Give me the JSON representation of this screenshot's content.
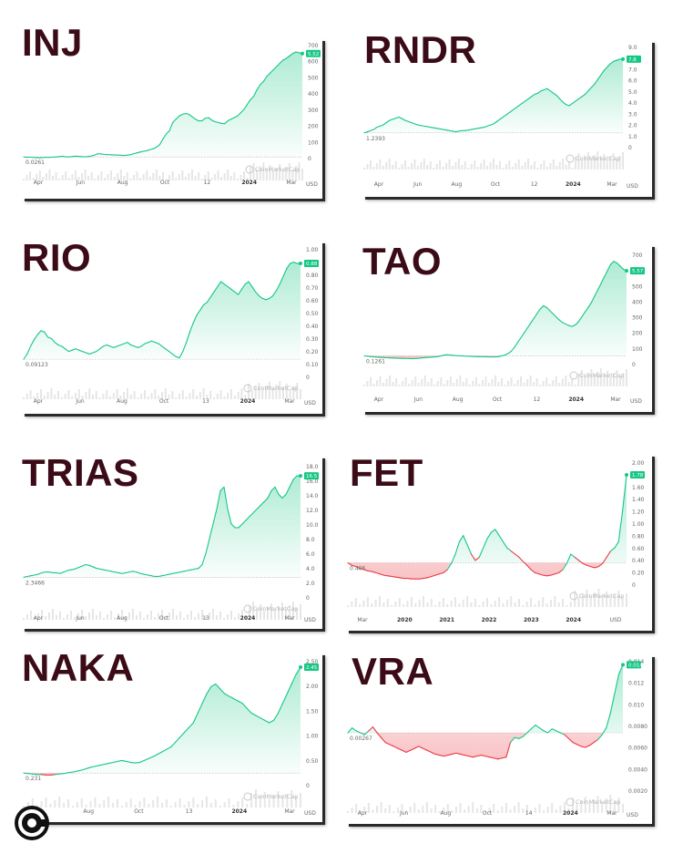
{
  "watermark": "CoinMarketCap",
  "currency": "USD",
  "colors": {
    "up": "#16c784",
    "down": "#ea3943",
    "title": "#3b0b17"
  },
  "logo_icon": "coin-c-icon",
  "chart_data": [
    {
      "id": "inj",
      "type": "area",
      "title": "INJ",
      "start_label": "0.0261",
      "current": "5.52",
      "x_labels": [
        "Apr",
        "Jun",
        "Aug",
        "Oct",
        "12",
        "2024",
        "Mar"
      ],
      "y_ticks": [
        "700",
        "600",
        "500",
        "400",
        "300",
        "200",
        "100",
        "0"
      ],
      "ymin": 0,
      "ymax": 700,
      "values": [
        10,
        8,
        9,
        7,
        6,
        5,
        7,
        8,
        7,
        9,
        10,
        12,
        14,
        11,
        10,
        12,
        15,
        13,
        12,
        11,
        13,
        16,
        22,
        30,
        28,
        25,
        24,
        23,
        22,
        22,
        20,
        19,
        21,
        24,
        30,
        35,
        40,
        45,
        48,
        55,
        60,
        70,
        85,
        120,
        150,
        170,
        220,
        240,
        260,
        270,
        275,
        270,
        255,
        240,
        230,
        230,
        245,
        250,
        235,
        225,
        220,
        215,
        212,
        230,
        240,
        250,
        260,
        280,
        300,
        330,
        360,
        380,
        420,
        450,
        470,
        500,
        520,
        540,
        560,
        580,
        600,
        610,
        625,
        640,
        650,
        645,
        640
      ],
      "red": []
    },
    {
      "id": "rndr",
      "type": "area",
      "title": "RNDR",
      "start_label": "1.2393",
      "current": "7.8",
      "x_labels": [
        "Apr",
        "Jun",
        "Aug",
        "Oct",
        "12",
        "2024",
        "Mar"
      ],
      "y_ticks": [
        "9.0",
        "8.0",
        "7.0",
        "6.0",
        "5.0",
        "4.0",
        "3.0",
        "2.0",
        "1.0",
        "0"
      ],
      "ymin": 0,
      "ymax": 9,
      "values": [
        1.3,
        1.4,
        1.5,
        1.6,
        1.8,
        1.9,
        2.0,
        2.2,
        2.4,
        2.5,
        2.6,
        2.7,
        2.55,
        2.4,
        2.3,
        2.2,
        2.1,
        2.0,
        1.95,
        1.9,
        1.85,
        1.8,
        1.75,
        1.7,
        1.65,
        1.6,
        1.55,
        1.5,
        1.45,
        1.4,
        1.45,
        1.5,
        1.5,
        1.55,
        1.6,
        1.65,
        1.7,
        1.75,
        1.8,
        1.9,
        2.0,
        2.1,
        2.3,
        2.5,
        2.7,
        2.9,
        3.1,
        3.3,
        3.5,
        3.7,
        3.9,
        4.1,
        4.3,
        4.5,
        4.7,
        4.8,
        5.0,
        5.1,
        5.2,
        5.0,
        4.8,
        4.6,
        4.3,
        4.0,
        3.8,
        3.7,
        3.9,
        4.1,
        4.3,
        4.5,
        4.7,
        5.0,
        5.3,
        5.6,
        6.0,
        6.4,
        6.8,
        7.1,
        7.4,
        7.6,
        7.7,
        7.8,
        7.8
      ],
      "red": []
    },
    {
      "id": "rio",
      "type": "area",
      "title": "RIO",
      "start_label": "0.09123",
      "current": "0.88",
      "x_labels": [
        "Apr",
        "Jun",
        "Aug",
        "Oct",
        "13",
        "2024",
        "Mar"
      ],
      "y_ticks": [
        "1.00",
        "0.90",
        "0.80",
        "0.70",
        "0.60",
        "0.50",
        "0.40",
        "0.30",
        "0.20",
        "0.10",
        "0"
      ],
      "ymin": 0,
      "ymax": 1.0,
      "values": [
        0.14,
        0.18,
        0.24,
        0.29,
        0.33,
        0.36,
        0.35,
        0.31,
        0.3,
        0.27,
        0.25,
        0.24,
        0.22,
        0.2,
        0.21,
        0.22,
        0.21,
        0.2,
        0.19,
        0.18,
        0.19,
        0.2,
        0.22,
        0.24,
        0.25,
        0.24,
        0.23,
        0.24,
        0.25,
        0.26,
        0.27,
        0.25,
        0.24,
        0.23,
        0.24,
        0.26,
        0.27,
        0.28,
        0.27,
        0.26,
        0.24,
        0.22,
        0.2,
        0.18,
        0.16,
        0.15,
        0.2,
        0.27,
        0.35,
        0.42,
        0.48,
        0.52,
        0.56,
        0.58,
        0.62,
        0.66,
        0.7,
        0.74,
        0.72,
        0.7,
        0.68,
        0.66,
        0.64,
        0.68,
        0.72,
        0.74,
        0.7,
        0.66,
        0.63,
        0.61,
        0.6,
        0.61,
        0.63,
        0.67,
        0.72,
        0.78,
        0.84,
        0.88,
        0.89,
        0.88,
        0.88
      ],
      "red": []
    },
    {
      "id": "tao",
      "type": "area",
      "title": "TAO",
      "start_label": "0.1261",
      "current": "5.57",
      "x_labels": [
        "Apr",
        "Jun",
        "Aug",
        "Oct",
        "12",
        "2024",
        "Mar"
      ],
      "y_ticks": [
        "700",
        "600",
        "500",
        "400",
        "300",
        "200",
        "100",
        "0"
      ],
      "ymin": 0,
      "ymax": 700,
      "values": [
        55,
        53,
        50,
        48,
        46,
        45,
        44,
        43,
        42,
        41,
        40,
        40,
        39,
        38,
        38,
        37,
        38,
        40,
        42,
        44,
        45,
        46,
        48,
        50,
        55,
        60,
        62,
        60,
        58,
        56,
        55,
        54,
        53,
        52,
        51,
        50,
        50,
        50,
        49,
        48,
        48,
        48,
        50,
        55,
        60,
        70,
        85,
        110,
        140,
        170,
        200,
        230,
        260,
        290,
        320,
        350,
        370,
        360,
        340,
        320,
        300,
        280,
        265,
        255,
        245,
        240,
        250,
        270,
        300,
        330,
        360,
        390,
        430,
        470,
        510,
        550,
        590,
        630,
        650,
        640,
        620,
        600,
        590
      ],
      "red": []
    },
    {
      "id": "trias",
      "type": "area",
      "title": "TRIAS",
      "start_label": "2.3466",
      "current": "16.5",
      "x_labels": [
        "Apr",
        "Jun",
        "Aug",
        "Oct",
        "13",
        "2024",
        "Mar"
      ],
      "y_ticks": [
        "18.0",
        "16.0",
        "14.0",
        "12.0",
        "10.0",
        "8.0",
        "6.0",
        "4.0",
        "2.0",
        "0"
      ],
      "ymin": 0,
      "ymax": 18,
      "values": [
        2.8,
        2.9,
        3.0,
        3.1,
        3.2,
        3.4,
        3.5,
        3.5,
        3.4,
        3.4,
        3.3,
        3.5,
        3.7,
        3.8,
        3.9,
        4.1,
        4.3,
        4.5,
        4.4,
        4.2,
        4.0,
        3.9,
        3.8,
        3.7,
        3.6,
        3.5,
        3.4,
        3.3,
        3.4,
        3.5,
        3.6,
        3.5,
        3.3,
        3.2,
        3.1,
        3.0,
        2.9,
        2.9,
        3.0,
        3.1,
        3.2,
        3.3,
        3.4,
        3.5,
        3.6,
        3.7,
        3.8,
        3.9,
        4.0,
        4.5,
        6.0,
        8.0,
        10.0,
        12.0,
        14.5,
        15.0,
        12.0,
        10.0,
        9.5,
        9.5,
        10.0,
        10.5,
        11.0,
        11.5,
        12.0,
        12.5,
        13.0,
        13.5,
        14.5,
        15.0,
        14.0,
        13.5,
        14.0,
        15.0,
        16.0,
        16.5,
        16.5
      ],
      "red": []
    },
    {
      "id": "fet",
      "type": "area",
      "title": "FET",
      "start_label": "0.406",
      "current": "1.78",
      "x_labels": [
        "Mar",
        "2020",
        "2021",
        "2022",
        "2023",
        "2024",
        "USD"
      ],
      "y_ticks": [
        "2.00",
        "1.80",
        "1.60",
        "1.40",
        "1.20",
        "1.00",
        "0.80",
        "0.60",
        "0.40",
        "0.20",
        "0"
      ],
      "ymin": 0,
      "ymax": 2.0,
      "values": [
        0.36,
        0.32,
        0.3,
        0.27,
        0.25,
        0.23,
        0.22,
        0.2,
        0.18,
        0.16,
        0.15,
        0.14,
        0.13,
        0.12,
        0.11,
        0.11,
        0.1,
        0.1,
        0.1,
        0.11,
        0.12,
        0.14,
        0.16,
        0.18,
        0.2,
        0.25,
        0.35,
        0.5,
        0.7,
        0.8,
        0.65,
        0.5,
        0.4,
        0.45,
        0.6,
        0.75,
        0.85,
        0.9,
        0.8,
        0.7,
        0.6,
        0.55,
        0.5,
        0.45,
        0.38,
        0.32,
        0.25,
        0.2,
        0.18,
        0.16,
        0.15,
        0.16,
        0.18,
        0.2,
        0.25,
        0.35,
        0.5,
        0.45,
        0.4,
        0.35,
        0.32,
        0.3,
        0.28,
        0.3,
        0.35,
        0.45,
        0.55,
        0.6,
        0.7,
        1.2,
        1.78
      ],
      "red": [
        [
          0,
          25
        ],
        [
          31,
          33
        ],
        [
          41,
          54
        ],
        [
          57,
          66
        ]
      ]
    },
    {
      "id": "naka",
      "type": "area",
      "title": "NAKA",
      "start_label": "0.231",
      "current": "2.45",
      "x_labels": [
        "Jun",
        "Aug",
        "Oct",
        "13",
        "2024",
        "Mar"
      ],
      "y_ticks": [
        "2.50",
        "2.00",
        "1.50",
        "1.00",
        "0.50",
        "0"
      ],
      "ymin": 0,
      "ymax": 2.6,
      "values": [
        0.26,
        0.25,
        0.24,
        0.23,
        0.23,
        0.22,
        0.22,
        0.23,
        0.24,
        0.25,
        0.27,
        0.28,
        0.3,
        0.32,
        0.35,
        0.38,
        0.4,
        0.42,
        0.44,
        0.46,
        0.48,
        0.5,
        0.52,
        0.5,
        0.48,
        0.47,
        0.48,
        0.52,
        0.56,
        0.6,
        0.65,
        0.7,
        0.75,
        0.8,
        0.9,
        1.0,
        1.1,
        1.2,
        1.3,
        1.5,
        1.7,
        1.9,
        2.05,
        2.1,
        2.0,
        1.9,
        1.85,
        1.8,
        1.75,
        1.7,
        1.6,
        1.5,
        1.45,
        1.4,
        1.35,
        1.3,
        1.35,
        1.5,
        1.7,
        1.9,
        2.1,
        2.3,
        2.45
      ],
      "red": [
        [
          4,
          7
        ]
      ]
    },
    {
      "id": "vra",
      "type": "area",
      "title": "VRA",
      "start_label": "0.00267",
      "current": "0.014",
      "x_labels": [
        "Apr",
        "Jun",
        "Aug",
        "Oct",
        "14",
        "2024",
        "Mar"
      ],
      "y_ticks": [
        "0.014",
        "0.012",
        "0.010",
        "0.0080",
        "0.0060",
        "0.0040",
        "0.0020"
      ],
      "ymin": 0.001,
      "ymax": 0.0145,
      "values": [
        0.007,
        0.0075,
        0.0072,
        0.007,
        0.0068,
        0.0072,
        0.0076,
        0.007,
        0.0065,
        0.006,
        0.0058,
        0.0056,
        0.0054,
        0.0052,
        0.005,
        0.0052,
        0.0054,
        0.0056,
        0.0054,
        0.0052,
        0.005,
        0.0048,
        0.0047,
        0.0046,
        0.0047,
        0.0048,
        0.0049,
        0.0048,
        0.0047,
        0.0046,
        0.0045,
        0.0046,
        0.0047,
        0.0046,
        0.0045,
        0.0044,
        0.0043,
        0.0044,
        0.0045,
        0.006,
        0.0065,
        0.0064,
        0.0066,
        0.007,
        0.0074,
        0.0078,
        0.0075,
        0.0072,
        0.007,
        0.0074,
        0.0072,
        0.007,
        0.0068,
        0.0064,
        0.006,
        0.0058,
        0.0056,
        0.0055,
        0.0057,
        0.006,
        0.0063,
        0.0068,
        0.0075,
        0.009,
        0.011,
        0.013,
        0.014
      ],
      "red": [
        [
          5,
          39
        ],
        [
          52,
          60
        ]
      ]
    }
  ]
}
